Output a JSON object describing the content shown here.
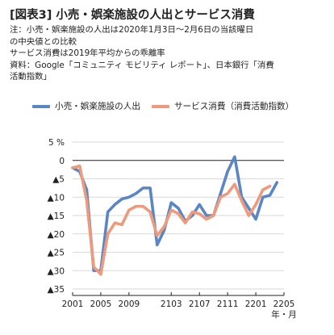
{
  "header": {
    "title": "[図表3] 小売・娯楽施設の人出とサービス消費",
    "notes": [
      "注：小売・娯楽施設の人出は2020年1月3日～2月6日の当該曜日",
      "の中央値との比較",
      "サービス消費は2019年平均からの乖離率",
      "資料：Google「コミュニティ モビリティ レポート」、日本銀行「消費",
      "活動指数」"
    ]
  },
  "colors": {
    "series_mobility": "#5b86c5",
    "series_consumption": "#ee9a7c",
    "axis": "#222222",
    "grid": "#d9d9d9"
  },
  "chart_data": {
    "type": "line",
    "title": "",
    "ylabel_unit": "%",
    "xlabel_unit": "年・月",
    "ylim": [
      -35,
      5
    ],
    "y_ticks": [
      5,
      0,
      -5,
      -10,
      -15,
      -20,
      -25,
      -30,
      -35
    ],
    "y_tick_labels": [
      "5 %",
      "0",
      "▲5",
      "▲10",
      "▲15",
      "▲20",
      "▲25",
      "▲30",
      "▲35"
    ],
    "x_ticks": [
      "2001",
      "2005",
      "2009",
      "2103",
      "2107",
      "2111",
      "2201",
      "2205"
    ],
    "x_tick_index": [
      0,
      4,
      8,
      14,
      18,
      22,
      26,
      30
    ],
    "grid": "horizontal",
    "zero_line": true,
    "legend_position": "top",
    "series": [
      {
        "name": "小売・娯楽施設の人出",
        "color": "#5b86c5",
        "values": [
          -2,
          -3,
          -8,
          -30,
          -30,
          -14,
          -12,
          -10.5,
          -10,
          -9,
          -7.5,
          -7.5,
          -23,
          -19,
          -11.5,
          -13,
          -16.5,
          -15,
          -12,
          -15,
          -15,
          -9,
          -3,
          1,
          -10,
          -13,
          -16,
          -10,
          -9.5,
          -6
        ]
      },
      {
        "name": "サービス消費（消費活動指数）",
        "color": "#ee9a7c",
        "values": [
          -2,
          -1.5,
          -11,
          -29,
          -31,
          -20,
          -17,
          -17.5,
          -13.5,
          -12.5,
          -12.5,
          -14,
          -20.5,
          -18,
          -13.5,
          -14.5,
          -17,
          -14,
          -14.5,
          -16,
          -15,
          -10,
          -9,
          -6.5,
          -11,
          -15,
          -12,
          -8,
          -7
        ]
      }
    ]
  }
}
